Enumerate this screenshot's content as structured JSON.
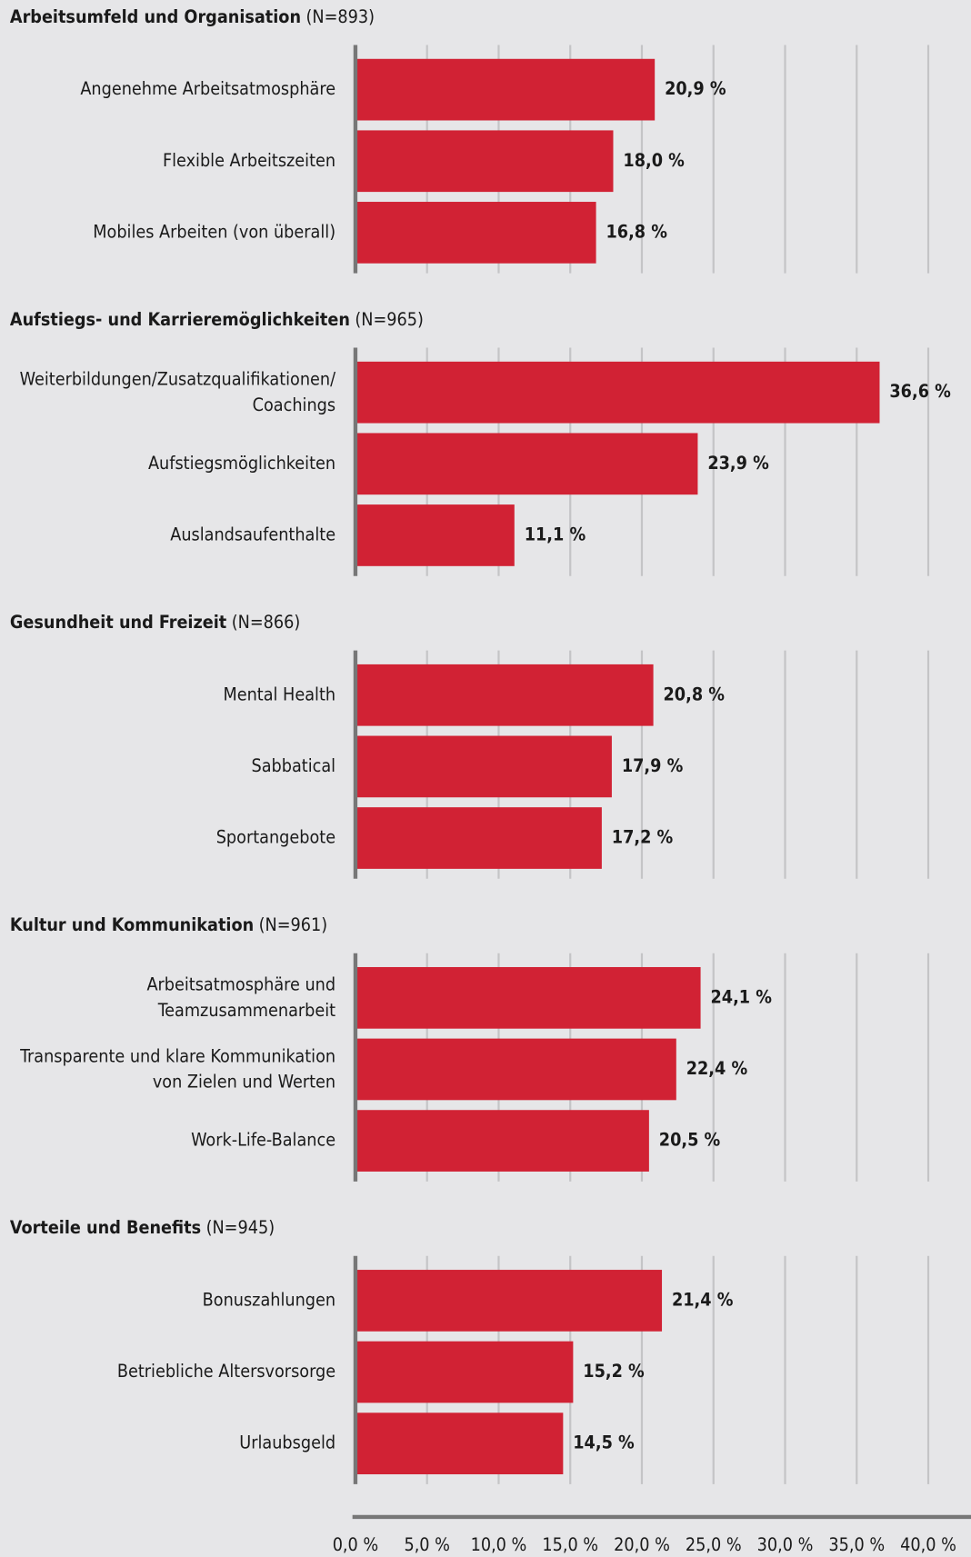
{
  "chart_data": [
    {
      "type": "barh",
      "title": "Arbeitsumfeld und Organisation",
      "subtitle": "(N=893)",
      "categories": [
        "Angenehme Arbeitsatmosphäre",
        "Flexible Arbeitszeiten",
        "Mobiles Arbeiten (von überall)"
      ],
      "values": [
        20.9,
        18.0,
        16.8
      ],
      "value_labels": [
        "20,9 %",
        "18,0 %",
        "16,8 %"
      ],
      "color": "#d12234",
      "xlim": [
        0,
        40
      ],
      "xticks": [
        0,
        5,
        10,
        15,
        20,
        25,
        30,
        35,
        40
      ],
      "grid": true
    },
    {
      "type": "barh",
      "title": "Aufstiegs- und Karrieremöglichkeiten",
      "subtitle": "(N=965)",
      "categories": [
        "Weiterbildungen/Zusatzqualifikationen/\nCoachings",
        "Aufstiegsmöglichkeiten",
        "Auslandsaufenthalte"
      ],
      "values": [
        36.6,
        23.9,
        11.1
      ],
      "value_labels": [
        "36,6 %",
        "23,9 %",
        "11,1 %"
      ],
      "color": "#d12234",
      "xlim": [
        0,
        40
      ],
      "xticks": [
        0,
        5,
        10,
        15,
        20,
        25,
        30,
        35,
        40
      ],
      "grid": true
    },
    {
      "type": "barh",
      "title": "Gesundheit und Freizeit",
      "subtitle": "(N=866)",
      "categories": [
        "Mental Health",
        "Sabbatical",
        "Sportangebote"
      ],
      "values": [
        20.8,
        17.9,
        17.2
      ],
      "value_labels": [
        "20,8 %",
        "17,9 %",
        "17,2 %"
      ],
      "color": "#d12234",
      "xlim": [
        0,
        40
      ],
      "xticks": [
        0,
        5,
        10,
        15,
        20,
        25,
        30,
        35,
        40
      ],
      "grid": true
    },
    {
      "type": "barh",
      "title": "Kultur und Kommunikation",
      "subtitle": "(N=961)",
      "categories": [
        "Arbeitsatmosphäre und\nTeamzusammenarbeit",
        "Transparente und klare Kommunikation\nvon Zielen und Werten",
        "Work-Life-Balance"
      ],
      "values": [
        24.1,
        22.4,
        20.5
      ],
      "value_labels": [
        "24,1 %",
        "22,4 %",
        "20,5 %"
      ],
      "color": "#d12234",
      "xlim": [
        0,
        40
      ],
      "xticks": [
        0,
        5,
        10,
        15,
        20,
        25,
        30,
        35,
        40
      ],
      "grid": true
    },
    {
      "type": "barh",
      "title": "Vorteile und Benefits",
      "subtitle": "(N=945)",
      "categories": [
        "Bonuszahlungen",
        "Betriebliche Altersvorsorge",
        "Urlaubsgeld"
      ],
      "values": [
        21.4,
        15.2,
        14.5
      ],
      "value_labels": [
        "21,4 %",
        "15,2 %",
        "14,5 %"
      ],
      "color": "#d12234",
      "xlim": [
        0,
        40
      ],
      "xticks": [
        {
          "value": 0,
          "label": "0,0 %"
        },
        {
          "value": 5,
          "label": "5,0 %"
        },
        {
          "value": 10,
          "label": "10,0 %"
        },
        {
          "value": 15,
          "label": "15,0 %"
        },
        {
          "value": 20,
          "label": "20,0 %"
        },
        {
          "value": 25,
          "label": "25,0 %"
        },
        {
          "value": 30,
          "label": "30,0 %"
        },
        {
          "value": 35,
          "label": "35,0 %"
        },
        {
          "value": 40,
          "label": "40,0 %"
        }
      ],
      "grid": true
    }
  ]
}
